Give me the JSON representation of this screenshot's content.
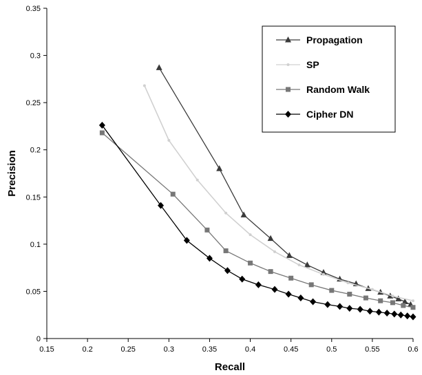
{
  "chart_data": {
    "type": "line",
    "xlabel": "Recall",
    "ylabel": "Precision",
    "xlim": [
      0.15,
      0.6
    ],
    "ylim": [
      0,
      0.35
    ],
    "xticks": [
      "0.15",
      "0.2",
      "0.25",
      "0.3",
      "0.35",
      "0.4",
      "0.45",
      "0.5",
      "0.55",
      "0.6"
    ],
    "yticks": [
      "0",
      "0.05",
      "0.1",
      "0.15",
      "0.2",
      "0.25",
      "0.3",
      "0.35"
    ],
    "grid": false,
    "legend_position": "top-right",
    "series": [
      {
        "name": "Propagation",
        "color": "#3a3a3a",
        "marker": "triangle",
        "x": [
          0.288,
          0.362,
          0.392,
          0.425,
          0.448,
          0.47,
          0.49,
          0.51,
          0.53,
          0.545,
          0.56,
          0.572,
          0.582,
          0.59,
          0.597
        ],
        "y": [
          0.287,
          0.18,
          0.131,
          0.106,
          0.088,
          0.078,
          0.07,
          0.063,
          0.058,
          0.053,
          0.049,
          0.045,
          0.042,
          0.039,
          0.036
        ]
      },
      {
        "name": "SP",
        "color": "#d0d0d0",
        "marker": "dot",
        "x": [
          0.27,
          0.3,
          0.335,
          0.37,
          0.4,
          0.43,
          0.46,
          0.49,
          0.52,
          0.55,
          0.575,
          0.6
        ],
        "y": [
          0.268,
          0.21,
          0.168,
          0.133,
          0.11,
          0.092,
          0.078,
          0.068,
          0.059,
          0.052,
          0.045,
          0.04
        ]
      },
      {
        "name": "Random Walk",
        "color": "#777777",
        "marker": "square",
        "x": [
          0.218,
          0.305,
          0.347,
          0.37,
          0.4,
          0.425,
          0.45,
          0.475,
          0.5,
          0.522,
          0.542,
          0.56,
          0.575,
          0.588,
          0.6
        ],
        "y": [
          0.218,
          0.153,
          0.115,
          0.093,
          0.08,
          0.071,
          0.064,
          0.057,
          0.051,
          0.047,
          0.043,
          0.04,
          0.038,
          0.035,
          0.033
        ]
      },
      {
        "name": "Cipher DN",
        "color": "#000000",
        "marker": "diamond",
        "x": [
          0.218,
          0.29,
          0.322,
          0.35,
          0.372,
          0.39,
          0.41,
          0.43,
          0.447,
          0.462,
          0.477,
          0.495,
          0.51,
          0.522,
          0.535,
          0.547,
          0.558,
          0.568,
          0.577,
          0.585,
          0.593,
          0.6
        ],
        "y": [
          0.226,
          0.141,
          0.104,
          0.085,
          0.072,
          0.063,
          0.057,
          0.052,
          0.047,
          0.043,
          0.039,
          0.036,
          0.034,
          0.032,
          0.031,
          0.029,
          0.028,
          0.027,
          0.026,
          0.025,
          0.024,
          0.023
        ]
      }
    ]
  }
}
